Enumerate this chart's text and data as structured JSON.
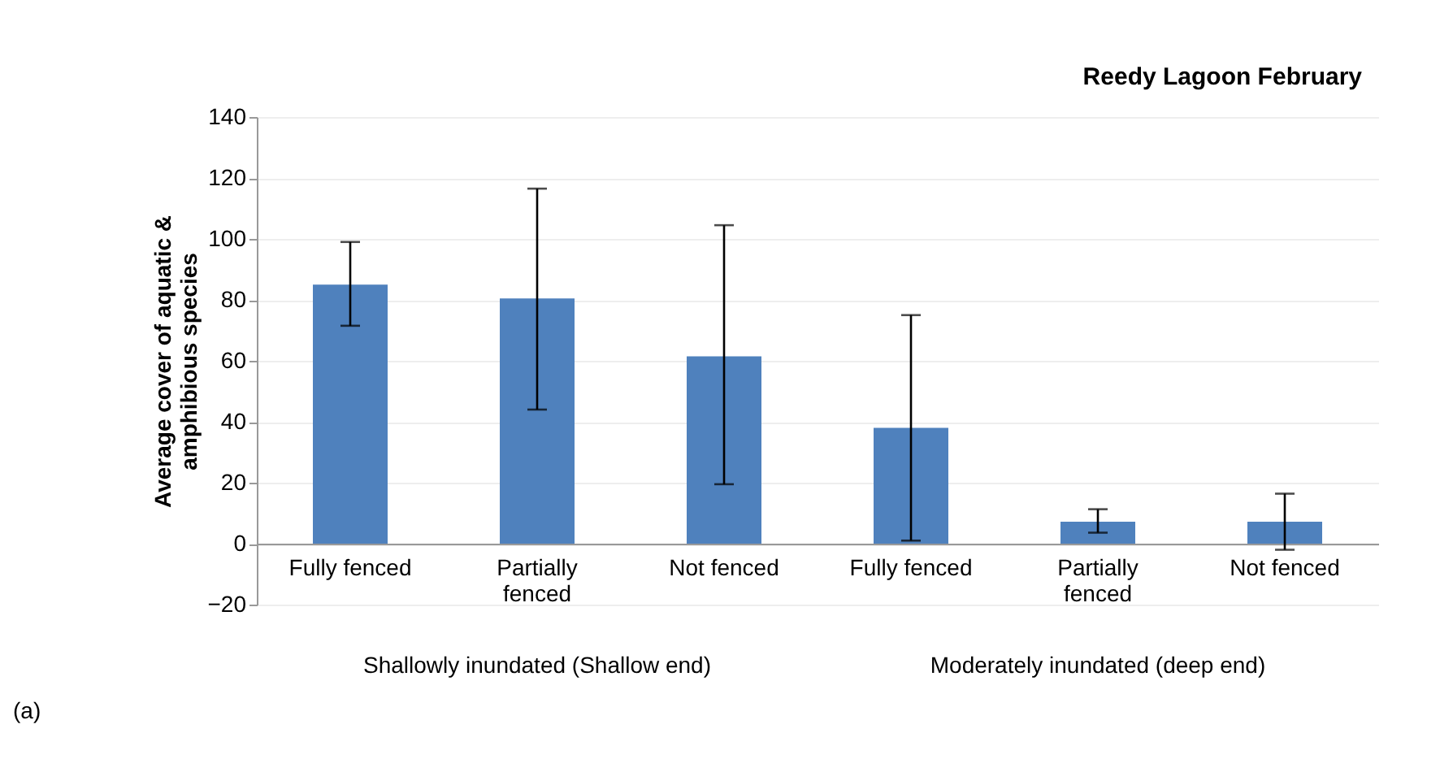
{
  "chart_data": {
    "type": "bar",
    "title": "Reedy Lagoon February",
    "ylabel": "Average cover of aquatic & amphibious species",
    "categories": [
      "Fully fenced",
      "Partially fenced",
      "Not fenced",
      "Fully fenced",
      "Partially fenced",
      "Not fenced"
    ],
    "series": [
      {
        "color": "#4f81bd",
        "values": [
          85,
          80.5,
          61.5,
          38,
          7.2,
          7.2
        ],
        "errors": [
          [
            71.5,
            99
          ],
          [
            44,
            116.5
          ],
          [
            19.5,
            104.5
          ],
          [
            1,
            75
          ],
          [
            3.6,
            11.3
          ],
          [
            -2,
            16.4
          ]
        ]
      }
    ],
    "ylim": [
      -20,
      140
    ],
    "yticks": [
      -20,
      0,
      20,
      40,
      60,
      80,
      100,
      120,
      140
    ],
    "grid": "y",
    "annotations": [
      "Shallowly inundated (Shallow end)",
      "Moderately inundated (deep end)",
      "(a)"
    ]
  }
}
